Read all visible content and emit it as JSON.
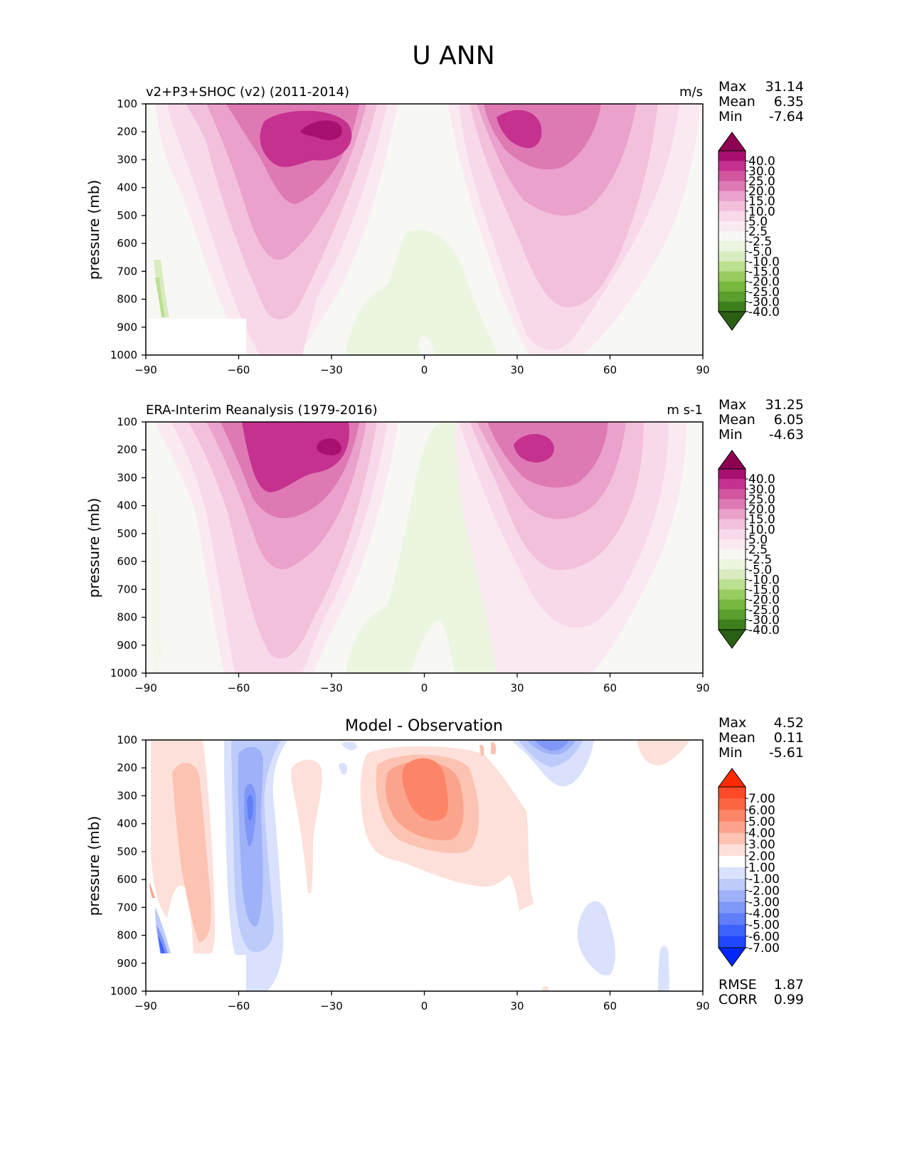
{
  "figure": {
    "title": "U ANN"
  },
  "colors": {
    "wind": [
      "#2b5f14",
      "#3e7f1d",
      "#5a9f2d",
      "#77b83f",
      "#99cc60",
      "#bbe08f",
      "#d8ecc0",
      "#ebf5e0",
      "#f7f7f4",
      "#fbe9f2",
      "#f8d9ea",
      "#f3c0dc",
      "#eaa1cb",
      "#de79b4",
      "#d2559f",
      "#c5318e",
      "#a8106f",
      "#8e0152"
    ],
    "diff": [
      "#0028ff",
      "#1f48ff",
      "#3e63fb",
      "#5f7ef8",
      "#7f98f8",
      "#9fb1f8",
      "#bccbfa",
      "#d9e1fc",
      "#ffffff",
      "#ffffff",
      "#fde0d9",
      "#fcc2b2",
      "#fca38e",
      "#fc8568",
      "#fc6542",
      "#ff4a28",
      "#ff2a00"
    ]
  },
  "panels": [
    {
      "left_title": "v2+P3+SHOC (v2) (2011-2014)",
      "right_title": "m/s",
      "stats": {
        "max_label": "Max",
        "max": "31.14",
        "mean_label": "Mean",
        "mean": "6.35",
        "min_label": "Min",
        "min": "-7.64"
      }
    },
    {
      "left_title": "ERA-Interim Reanalysis (1979-2016)",
      "right_title": "m s-1",
      "stats": {
        "max_label": "Max",
        "max": "31.25",
        "mean_label": "Mean",
        "mean": "6.05",
        "min_label": "Min",
        "min": "-4.63"
      }
    },
    {
      "center_title": "Model - Observation",
      "stats": {
        "max_label": "Max",
        "max": "4.52",
        "mean_label": "Mean",
        "mean": "0.11",
        "min_label": "Min",
        "min": "-5.61"
      },
      "extra": {
        "rmse_label": "RMSE",
        "rmse": "1.87",
        "corr_label": "CORR",
        "corr": "0.99"
      }
    }
  ],
  "chart_data": [
    {
      "type": "heatmap",
      "title": "v2+P3+SHOC (v2) (2011-2014)",
      "units": "m/s",
      "ylabel": "pressure (mb)",
      "xlim": [
        -90,
        90
      ],
      "ylim": [
        1000,
        100
      ],
      "xticks": [
        -90,
        -60,
        -30,
        0,
        30,
        60,
        90
      ],
      "xtick_labels": [
        "−90",
        "−60",
        "−30",
        "0",
        "30",
        "60",
        "90"
      ],
      "yticks": [
        100,
        200,
        300,
        400,
        500,
        600,
        700,
        800,
        900,
        1000
      ],
      "colorbar_levels": [
        "-40.0",
        "-30.0",
        "-25.0",
        "-20.0",
        "-15.0",
        "-10.0",
        "-5.0",
        "-2.5",
        "2.5",
        "5.0",
        "10.0",
        "15.0",
        "20.0",
        "25.0",
        "30.0",
        "40.0"
      ],
      "colorbar_extend": "both",
      "features": [
        {
          "kind": "jet",
          "lat": -38,
          "p": 200,
          "peak": 31.14,
          "spread_lat": 16,
          "base_lat": -50,
          "base_p": 1000
        },
        {
          "kind": "jet",
          "lat": 33,
          "p": 220,
          "peak": 26,
          "spread_lat": 17,
          "base_lat": 40,
          "base_p": 1000
        },
        {
          "kind": "easterly",
          "lat": 0,
          "p": 1000,
          "min": -7.64
        }
      ],
      "missing_region": {
        "lat": [
          -90,
          -54
        ],
        "p": [
          865,
          1000
        ]
      }
    },
    {
      "type": "heatmap",
      "title": "ERA-Interim Reanalysis (1979-2016)",
      "units": "m s-1",
      "ylabel": "pressure (mb)",
      "xlim": [
        -90,
        90
      ],
      "ylim": [
        1000,
        100
      ],
      "xticks": [
        -90,
        -60,
        -30,
        0,
        30,
        60,
        90
      ],
      "xtick_labels": [
        "−90",
        "−60",
        "−30",
        "0",
        "30",
        "60",
        "90"
      ],
      "yticks": [
        100,
        200,
        300,
        400,
        500,
        600,
        700,
        800,
        900,
        1000
      ],
      "colorbar_levels": [
        "-40.0",
        "-30.0",
        "-25.0",
        "-20.0",
        "-15.0",
        "-10.0",
        "-5.0",
        "-2.5",
        "2.5",
        "5.0",
        "10.0",
        "15.0",
        "20.0",
        "25.0",
        "30.0",
        "40.0"
      ],
      "colorbar_extend": "both",
      "features": [
        {
          "kind": "jet",
          "lat": -33,
          "p": 200,
          "peak": 31.25,
          "spread_lat": 17,
          "base_lat": -50,
          "base_p": 1000
        },
        {
          "kind": "jet",
          "lat": 37,
          "p": 200,
          "peak": 28,
          "spread_lat": 17,
          "base_lat": 43,
          "base_p": 1000
        },
        {
          "kind": "easterly",
          "lat": 2,
          "p": 1000,
          "min": -4.63
        }
      ]
    },
    {
      "type": "heatmap",
      "title": "Model - Observation",
      "ylabel": "pressure (mb)",
      "xlim": [
        -90,
        90
      ],
      "ylim": [
        1000,
        100
      ],
      "xticks": [
        -90,
        -60,
        -30,
        0,
        30,
        60,
        90
      ],
      "xtick_labels": [
        "−90",
        "−60",
        "−30",
        "0",
        "30",
        "60",
        "90"
      ],
      "yticks": [
        100,
        200,
        300,
        400,
        500,
        600,
        700,
        800,
        900,
        1000
      ],
      "colorbar_levels": [
        "-7.00",
        "-6.00",
        "-5.00",
        "-4.00",
        "-3.00",
        "-2.00",
        "-1.00",
        "1.00",
        "2.00",
        "3.00",
        "4.00",
        "5.00",
        "6.00",
        "7.00"
      ],
      "colorbar_extend": "both",
      "features": [
        {
          "kind": "positive",
          "lat": 5,
          "p": 280,
          "peak": 4.52
        },
        {
          "kind": "positive",
          "lat": -77,
          "p": 350,
          "peak": 3.0
        },
        {
          "kind": "negative",
          "lat": -56,
          "p": 320,
          "min": -5.61
        },
        {
          "kind": "negative",
          "lat": 38,
          "p": 120,
          "min": -5.0
        },
        {
          "kind": "negative",
          "lat": 57,
          "p": 800,
          "min": -1.5
        }
      ],
      "missing_region": {
        "lat": [
          -90,
          -54
        ],
        "p": [
          865,
          1000
        ]
      },
      "rmse": 1.87,
      "corr": 0.99
    }
  ]
}
